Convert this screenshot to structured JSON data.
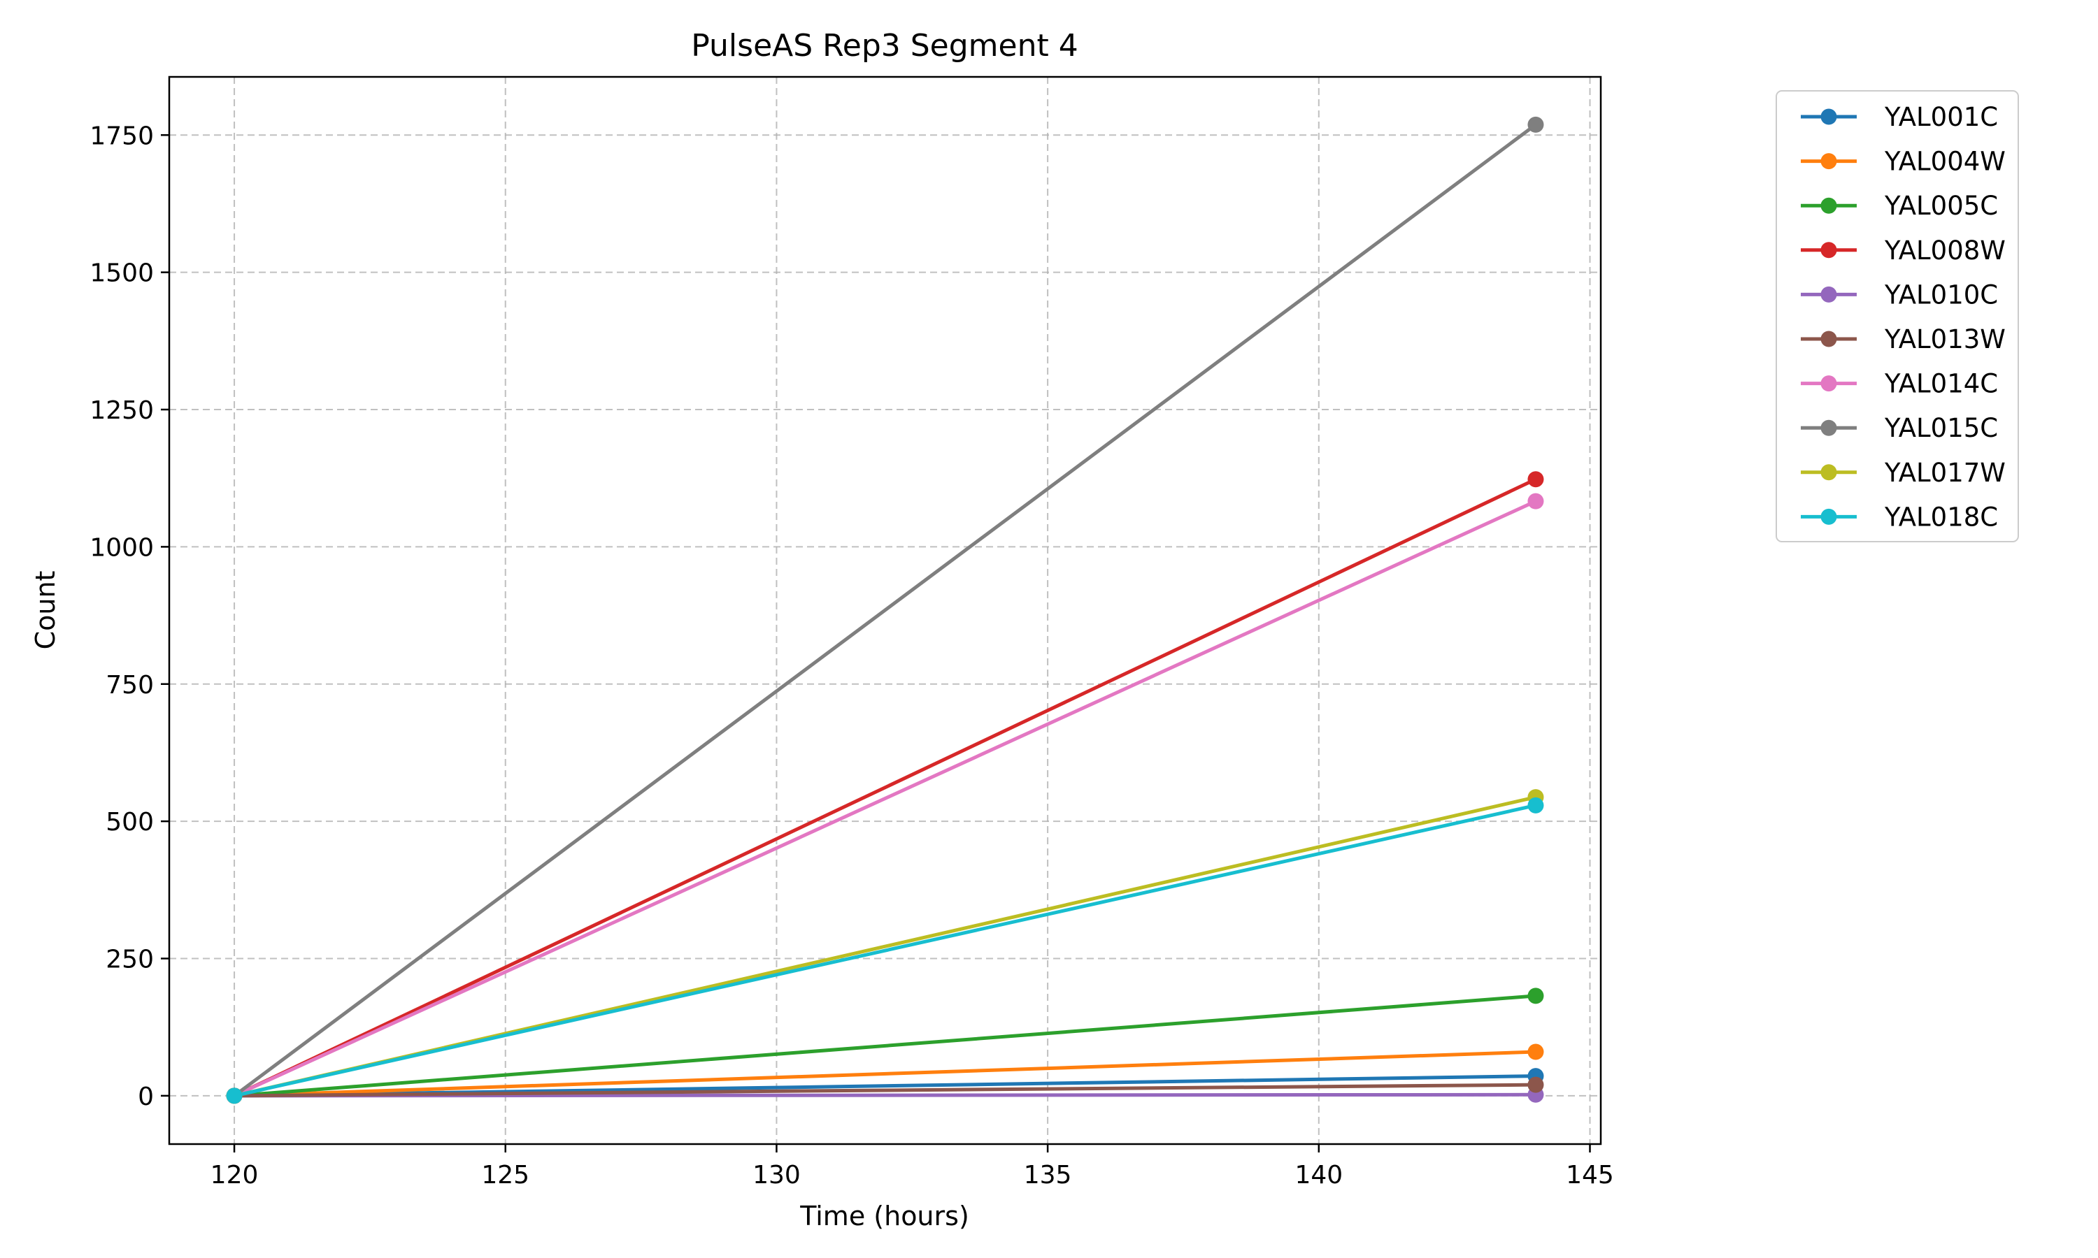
{
  "chart_data": {
    "type": "line",
    "title": "PulseAS Rep3 Segment 4",
    "xlabel": "Time (hours)",
    "ylabel": "Count",
    "xlim": [
      118.8,
      145.2
    ],
    "ylim": [
      -88,
      1856
    ],
    "xticks": [
      120,
      125,
      130,
      135,
      140,
      145
    ],
    "yticks": [
      0,
      250,
      500,
      750,
      1000,
      1250,
      1500,
      1750
    ],
    "grid": true,
    "legend": "outside-top-right",
    "x": [
      120,
      144
    ],
    "series": [
      {
        "name": "YAL001C",
        "color": "#1f77b4",
        "values": [
          0,
          36
        ]
      },
      {
        "name": "YAL004W",
        "color": "#ff7f0e",
        "values": [
          0,
          80
        ]
      },
      {
        "name": "YAL005C",
        "color": "#2ca02c",
        "values": [
          0,
          182
        ]
      },
      {
        "name": "YAL008W",
        "color": "#d62728",
        "values": [
          0,
          1123
        ]
      },
      {
        "name": "YAL010C",
        "color": "#9467bd",
        "values": [
          0,
          2
        ]
      },
      {
        "name": "YAL013W",
        "color": "#8c564b",
        "values": [
          0,
          20
        ]
      },
      {
        "name": "YAL014C",
        "color": "#e377c2",
        "values": [
          0,
          1083
        ]
      },
      {
        "name": "YAL015C",
        "color": "#7f7f7f",
        "values": [
          0,
          1769
        ]
      },
      {
        "name": "YAL017W",
        "color": "#bcbd22",
        "values": [
          0,
          544
        ]
      },
      {
        "name": "YAL018C",
        "color": "#17becf",
        "values": [
          0,
          529
        ]
      }
    ]
  }
}
